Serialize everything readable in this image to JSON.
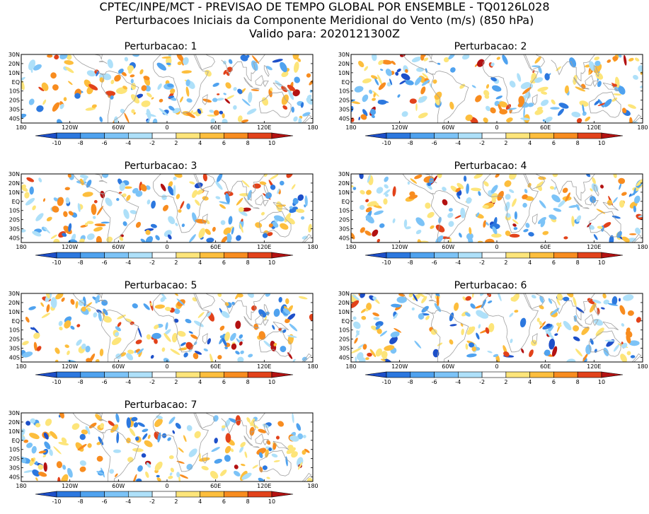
{
  "header": {
    "line1": "CPTEC/INPE/MCT - PREVISAO DE TEMPO GLOBAL POR ENSEMBLE - TQ0126L028",
    "line2": "Perturbacoes Iniciais da Componente Meridional do Vento (m/s) (850 hPa)",
    "line3": "Valido para: 2020121300Z"
  },
  "panels": [
    {
      "title": "Perturbacao: 1",
      "seed": 11
    },
    {
      "title": "Perturbacao: 2",
      "seed": 23
    },
    {
      "title": "Perturbacao: 3",
      "seed": 37
    },
    {
      "title": "Perturbacao: 4",
      "seed": 41
    },
    {
      "title": "Perturbacao: 5",
      "seed": 53
    },
    {
      "title": "Perturbacao: 6",
      "seed": 67
    },
    {
      "title": "Perturbacao: 7",
      "seed": 79
    }
  ],
  "axes": {
    "lat_labels": [
      "30N",
      "20N",
      "10N",
      "EQ",
      "10S",
      "20S",
      "30S",
      "40S"
    ],
    "lat_values": [
      30,
      20,
      10,
      0,
      -10,
      -20,
      -30,
      -40
    ],
    "lat_range": [
      -45,
      30
    ],
    "lon_labels": [
      "180",
      "120W",
      "60W",
      "0",
      "60E",
      "120E",
      "180"
    ],
    "lon_values": [
      -180,
      -120,
      -60,
      0,
      60,
      120,
      180
    ]
  },
  "colorbar": {
    "levels": [
      "-10",
      "-8",
      "-6",
      "-4",
      "-2",
      "2",
      "4",
      "6",
      "8",
      "10"
    ],
    "colors": [
      "#1d4fc9",
      "#2c78df",
      "#4fa2ef",
      "#7cc3f7",
      "#aee0f9",
      "#ffffff",
      "#fde57a",
      "#fdbe3d",
      "#f88c1f",
      "#e2421a",
      "#b31212"
    ]
  },
  "map_style": {
    "coast_color": "#a0a0a0",
    "positive_color": "#f5a21a",
    "negative_color": "#4fa2ef"
  }
}
